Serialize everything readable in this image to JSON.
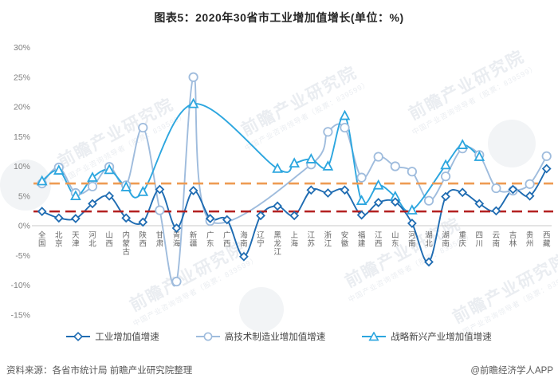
{
  "title": "图表5：2020年30省市工业增加值增长(单位：%)",
  "footer": {
    "source": "资料来源：各省市统计局 前瞻产业研究院整理",
    "credit": "@前瞻经济学人APP"
  },
  "watermark": {
    "main": "前瞻产业研究院",
    "sub": "中国产业咨询领导者（股票：839599）"
  },
  "colors": {
    "industrial": "#1F6CB2",
    "hightech": "#9FBCDD",
    "strategic": "#2CA6DF",
    "ref_orange": "#EE9B53",
    "ref_red": "#B42020",
    "axis_line": "#C8C8C8",
    "tick_text": "#7F7F7F",
    "xlabel_text": "#666666"
  },
  "chart_data": {
    "type": "line",
    "title": "图表5：2020年30省市工业增加值增长(单位：%)",
    "xlabel": "",
    "ylabel": "%",
    "ylim": [
      -15,
      30
    ],
    "grid": false,
    "legend_position": "bottom",
    "y_tick_labels": [
      "30%",
      "25%",
      "20%",
      "15%",
      "10%",
      "5%",
      "0%",
      "-5%",
      "-10%",
      "-15%"
    ],
    "y_tick_values": [
      30,
      25,
      20,
      15,
      10,
      5,
      0,
      -5,
      -10,
      -15
    ],
    "categories": [
      "全国",
      "北京",
      "天津",
      "河北",
      "山西",
      "内蒙古",
      "陕西",
      "甘肃",
      "青海",
      "新疆",
      "广东",
      "广西",
      "海南",
      "辽宁",
      "黑龙江",
      "上海",
      "江苏",
      "浙江",
      "安徽",
      "福建",
      "江西",
      "山东",
      "河南",
      "湖北",
      "湖南",
      "重庆",
      "四川",
      "云南",
      "吉林",
      "贵州",
      "西藏"
    ],
    "series": [
      {
        "name": "工业增加值增速",
        "marker": "diamond",
        "color": "#1F6CB2",
        "values": [
          2.4,
          1.3,
          1.2,
          3.7,
          5.0,
          1.3,
          0.6,
          6.1,
          -0.4,
          5.9,
          1.2,
          1.0,
          -5.2,
          1.7,
          3.3,
          1.7,
          6.0,
          5.5,
          6.0,
          1.8,
          3.9,
          4.0,
          0.4,
          -6.1,
          4.9,
          5.6,
          3.7,
          2.5,
          6.1,
          5.0,
          9.6
        ]
      },
      {
        "name": "高技术制造业增加值增速",
        "marker": "circle",
        "color": "#9FBCDD",
        "values": [
          7.1,
          9.8,
          5.5,
          6.6,
          9.9,
          6.8,
          16.5,
          2.6,
          -9.4,
          25.0,
          0.8,
          null,
          null,
          null,
          null,
          null,
          10.3,
          15.8,
          16.5,
          8.1,
          11.6,
          10.0,
          9.1,
          4.2,
          8.3,
          13.0,
          11.9,
          6.3,
          5.9,
          7.0,
          11.7
        ]
      },
      {
        "name": "战略新兴产业增加值增速",
        "marker": "triangle",
        "color": "#2CA6DF",
        "values": [
          7.5,
          9.3,
          5.0,
          8.1,
          9.4,
          6.5,
          5.7,
          null,
          null,
          20.5,
          null,
          null,
          null,
          null,
          9.6,
          10.5,
          11.2,
          10.0,
          18.5,
          4.2,
          6.8,
          4.9,
          2.6,
          null,
          10.2,
          13.6,
          11.6,
          null,
          null,
          null,
          null
        ]
      }
    ],
    "reference_lines": [
      {
        "name": "ref-orange",
        "value": 7.1,
        "color": "#EE9B53"
      },
      {
        "name": "ref-red",
        "value": 2.4,
        "color": "#B42020"
      }
    ]
  }
}
